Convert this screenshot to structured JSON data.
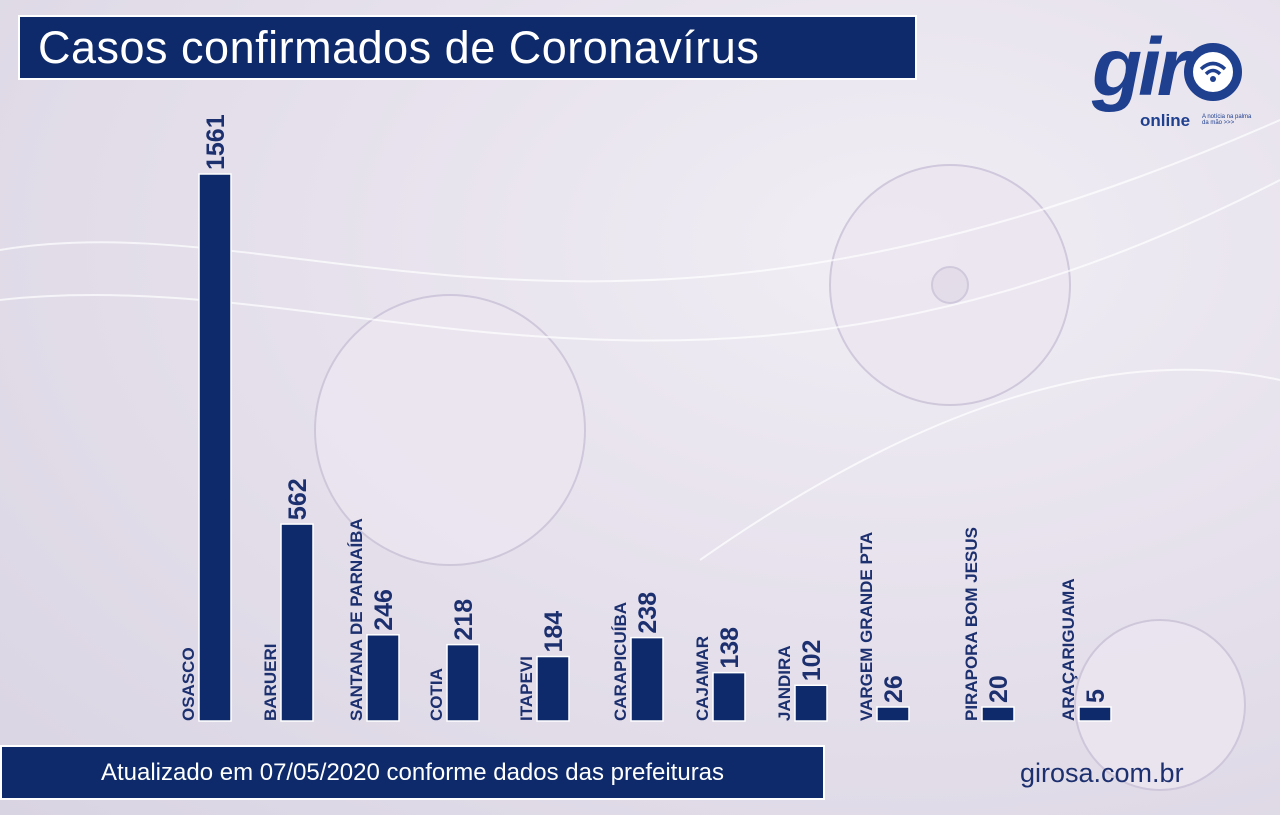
{
  "header": {
    "title": "Casos confirmados de Coronavírus"
  },
  "footer": {
    "note": "Atualizado em 07/05/2020 conforme dados das prefeituras",
    "site": "girosa.com.br"
  },
  "logo": {
    "wordmark": "giro",
    "sub": "online",
    "tagline": "A notícia na palma da mão >>>"
  },
  "colors": {
    "bar": "#0e2a6b",
    "text": "#1c2f6e",
    "logo": "#1f3f8f"
  },
  "chart_data": {
    "type": "bar",
    "title": "Casos confirmados de Coronavírus",
    "categories": [
      "OSASCO",
      "BARUERI",
      "SANTANA DE PARNAÍBA",
      "COTIA",
      "ITAPEVI",
      "CARAPICUÍBA",
      "CAJAMAR",
      "JANDIRA",
      "VARGEM GRANDE PTA",
      "PIRAPORA BOM JESUS",
      "ARAÇARIGUAMA"
    ],
    "values": [
      1561,
      562,
      246,
      218,
      184,
      238,
      138,
      102,
      26,
      20,
      5
    ],
    "value_labels": true,
    "grid": false,
    "legend": "none"
  }
}
